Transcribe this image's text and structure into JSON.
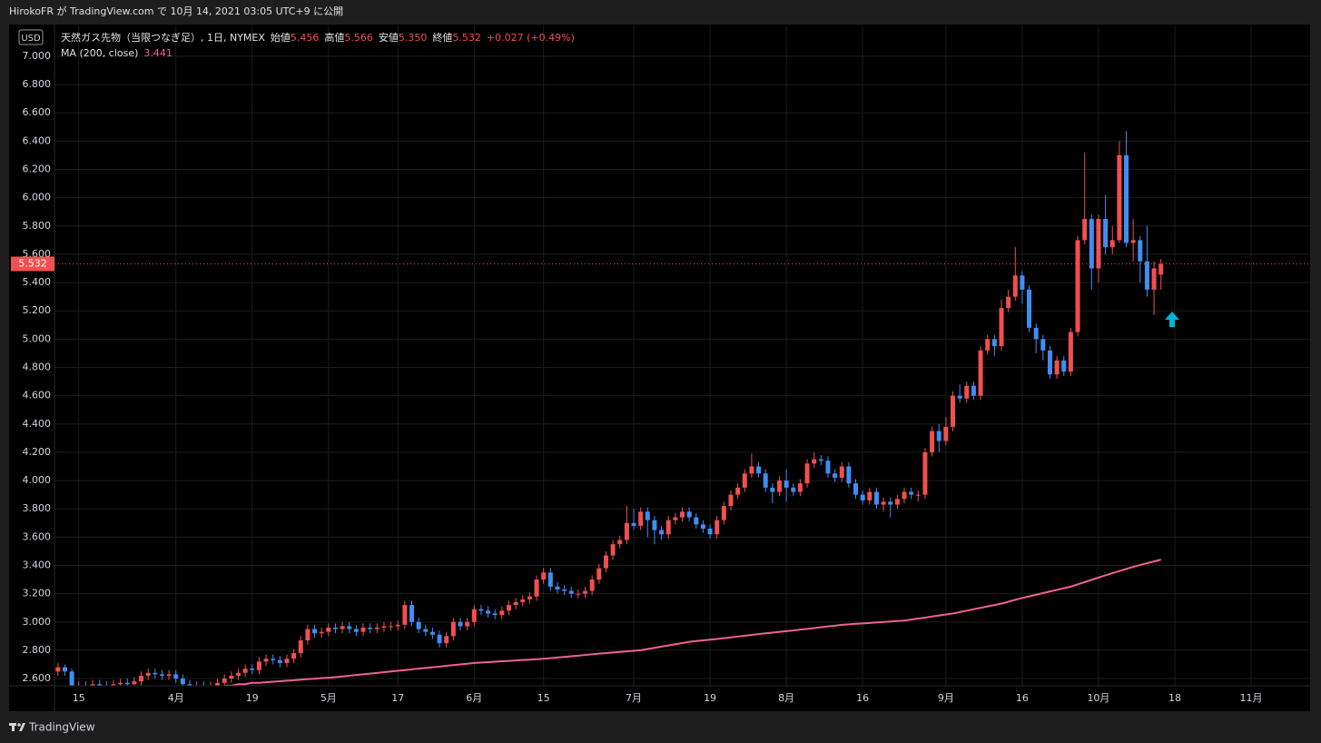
{
  "header": {
    "publish_line": "HirokoFR が TradingView.com で 10月 14, 2021 03:05 UTC+9 に公開"
  },
  "footer": {
    "brand": "TradingView"
  },
  "chart_data": {
    "type": "candlestick",
    "currency": "USD",
    "symbol": "天然ガス先物（当限つなぎ足）, 1日, NYMEX",
    "ohlc_legend": {
      "open_name": "始値",
      "open": "5.456",
      "high_name": "高値",
      "high": "5.566",
      "low_name": "安値",
      "low": "5.350",
      "close_name": "終値",
      "close": "5.532",
      "change": "+0.027 (+0.49%)"
    },
    "up_color": "#f0504f",
    "down_color": "#3f8ef5",
    "grid": true,
    "categories": [
      null,
      null,
      null,
      "15",
      null,
      null,
      null,
      null,
      null,
      null,
      null,
      null,
      null,
      null,
      null,
      null,
      null,
      "4月",
      null,
      null,
      null,
      null,
      null,
      null,
      null,
      null,
      null,
      null,
      "19",
      null,
      null,
      null,
      null,
      null,
      null,
      null,
      null,
      null,
      null,
      "5月",
      null,
      null,
      null,
      null,
      null,
      null,
      null,
      null,
      null,
      "17",
      null,
      null,
      null,
      null,
      null,
      null,
      null,
      null,
      null,
      null,
      "6月",
      null,
      null,
      null,
      null,
      null,
      null,
      null,
      null,
      null,
      "15",
      null,
      null,
      null,
      null,
      null,
      null,
      null,
      null,
      null,
      null,
      null,
      null,
      "7月",
      null,
      null,
      null,
      null,
      null,
      null,
      null,
      null,
      null,
      null,
      "19",
      null,
      null,
      null,
      null,
      null,
      null,
      null,
      null,
      null,
      null,
      "8月",
      null,
      null,
      null,
      null,
      null,
      null,
      null,
      null,
      null,
      null,
      "16",
      null,
      null,
      null,
      null,
      null,
      null,
      null,
      null,
      null,
      null,
      null,
      "9月",
      null,
      null,
      null,
      null,
      null,
      null,
      null,
      null,
      null,
      null,
      "16",
      null,
      null,
      null,
      null,
      null,
      null,
      null,
      null,
      null,
      null,
      "10月",
      null,
      null,
      null,
      null,
      null,
      null,
      null,
      null,
      null,
      null,
      "18",
      null,
      null,
      null,
      null,
      null,
      null,
      null,
      null,
      null,
      null,
      "11月",
      null,
      null,
      null,
      null,
      null,
      null,
      null,
      null
    ],
    "open": [
      2.65,
      2.68,
      2.65,
      2.55,
      2.55,
      2.54,
      2.56,
      2.55,
      2.54,
      2.56,
      2.57,
      2.56,
      2.58,
      2.62,
      2.64,
      2.63,
      2.62,
      2.63,
      2.6,
      2.56,
      2.54,
      2.55,
      2.54,
      2.55,
      2.57,
      2.6,
      2.62,
      2.64,
      2.67,
      2.66,
      2.72,
      2.74,
      2.73,
      2.71,
      2.74,
      2.78,
      2.87,
      2.95,
      2.92,
      2.93,
      2.96,
      2.95,
      2.97,
      2.95,
      2.93,
      2.96,
      2.95,
      2.96,
      2.97,
      2.97,
      2.98,
      3.12,
      3.0,
      2.95,
      2.93,
      2.91,
      2.85,
      2.9,
      3.0,
      2.97,
      3.0,
      3.09,
      3.08,
      3.06,
      3.05,
      3.08,
      3.12,
      3.14,
      3.16,
      3.18,
      3.3,
      3.35,
      3.25,
      3.23,
      3.22,
      3.2,
      3.2,
      3.22,
      3.3,
      3.38,
      3.47,
      3.55,
      3.58,
      3.7,
      3.68,
      3.78,
      3.72,
      3.65,
      3.62,
      3.72,
      3.74,
      3.78,
      3.74,
      3.69,
      3.66,
      3.62,
      3.72,
      3.82,
      3.9,
      3.95,
      4.05,
      4.1,
      4.05,
      3.95,
      3.92,
      4.0,
      3.95,
      3.92,
      3.98,
      4.12,
      4.15,
      4.14,
      4.05,
      4.02,
      4.1,
      3.98,
      3.9,
      3.86,
      3.92,
      3.83,
      3.85,
      3.83,
      3.87,
      3.92,
      3.9,
      3.9,
      4.2,
      4.35,
      4.28,
      4.38,
      4.6,
      4.58,
      4.67,
      4.6,
      4.92,
      5.0,
      4.95,
      5.22,
      5.3,
      5.45,
      5.35,
      5.08,
      5.0,
      4.92,
      4.75,
      4.85,
      4.77,
      5.05,
      5.7,
      5.85,
      5.5,
      5.85,
      5.65,
      5.7,
      6.3,
      5.68,
      5.7,
      5.55,
      5.35,
      5.456,
      null,
      null,
      null,
      null,
      null,
      null,
      null,
      null,
      null,
      null,
      null,
      null,
      null,
      null,
      null,
      null,
      null,
      null,
      null,
      null,
      null
    ],
    "high": [
      2.71,
      2.7,
      2.67,
      2.58,
      2.58,
      2.59,
      2.59,
      2.58,
      2.59,
      2.6,
      2.6,
      2.61,
      2.65,
      2.67,
      2.67,
      2.66,
      2.66,
      2.66,
      2.63,
      2.59,
      2.58,
      2.58,
      2.58,
      2.6,
      2.63,
      2.65,
      2.67,
      2.7,
      2.7,
      2.75,
      2.77,
      2.77,
      2.76,
      2.77,
      2.81,
      2.9,
      2.98,
      2.98,
      2.96,
      2.99,
      2.99,
      3.0,
      3.0,
      2.98,
      2.99,
      2.99,
      2.99,
      3.0,
      3.0,
      3.01,
      3.15,
      3.15,
      3.03,
      2.98,
      2.96,
      2.94,
      2.93,
      3.03,
      3.03,
      3.03,
      3.12,
      3.12,
      3.11,
      3.09,
      3.11,
      3.15,
      3.17,
      3.19,
      3.21,
      3.33,
      3.38,
      3.38,
      3.28,
      3.26,
      3.25,
      3.23,
      3.25,
      3.33,
      3.41,
      3.5,
      3.58,
      3.61,
      3.82,
      3.8,
      3.81,
      3.81,
      3.75,
      3.68,
      3.75,
      3.77,
      3.81,
      3.81,
      3.77,
      3.72,
      3.69,
      3.75,
      3.85,
      3.93,
      3.98,
      4.08,
      4.19,
      4.13,
      4.08,
      3.98,
      4.03,
      4.08,
      3.98,
      4.01,
      4.15,
      4.2,
      4.18,
      4.17,
      4.08,
      4.13,
      4.13,
      4.01,
      3.93,
      3.95,
      3.95,
      3.88,
      3.88,
      3.9,
      3.95,
      3.95,
      3.93,
      4.23,
      4.38,
      4.4,
      4.45,
      4.63,
      4.68,
      4.7,
      4.7,
      4.95,
      5.03,
      5.03,
      5.28,
      5.35,
      5.65,
      5.48,
      5.38,
      5.11,
      5.03,
      4.95,
      4.88,
      4.88,
      5.08,
      5.73,
      6.32,
      5.88,
      5.88,
      6.02,
      5.8,
      6.4,
      6.47,
      5.85,
      5.73,
      5.8,
      5.55,
      5.566,
      null,
      null,
      null,
      null,
      null,
      null,
      null,
      null,
      null,
      null,
      null,
      null,
      null,
      null,
      null,
      null,
      null,
      null,
      null,
      null,
      null
    ],
    "low": [
      2.62,
      2.62,
      2.52,
      2.52,
      2.51,
      2.51,
      2.52,
      2.51,
      2.51,
      2.53,
      2.53,
      2.53,
      2.55,
      2.59,
      2.6,
      2.59,
      2.59,
      2.57,
      2.53,
      2.51,
      2.51,
      2.51,
      2.51,
      2.52,
      2.54,
      2.57,
      2.59,
      2.61,
      2.63,
      2.63,
      2.69,
      2.7,
      2.68,
      2.68,
      2.71,
      2.75,
      2.84,
      2.89,
      2.89,
      2.9,
      2.92,
      2.92,
      2.92,
      2.9,
      2.9,
      2.92,
      2.92,
      2.93,
      2.94,
      2.94,
      2.95,
      2.97,
      2.92,
      2.9,
      2.88,
      2.82,
      2.82,
      2.87,
      2.94,
      2.94,
      2.97,
      3.05,
      3.03,
      3.02,
      3.02,
      3.05,
      3.09,
      3.11,
      3.13,
      3.15,
      3.27,
      3.22,
      3.2,
      3.19,
      3.17,
      3.17,
      3.17,
      3.19,
      3.27,
      3.35,
      3.44,
      3.52,
      3.55,
      3.65,
      3.65,
      3.6,
      3.55,
      3.58,
      3.59,
      3.69,
      3.71,
      3.71,
      3.66,
      3.63,
      3.59,
      3.59,
      3.69,
      3.79,
      3.87,
      3.92,
      4.02,
      4.02,
      3.92,
      3.84,
      3.89,
      3.85,
      3.89,
      3.89,
      3.95,
      4.09,
      4.11,
      4.02,
      3.99,
      3.99,
      3.95,
      3.87,
      3.83,
      3.83,
      3.8,
      3.78,
      3.74,
      3.8,
      3.84,
      3.87,
      3.85,
      3.87,
      4.17,
      4.2,
      4.25,
      4.35,
      4.55,
      4.55,
      4.57,
      4.57,
      4.89,
      4.88,
      4.92,
      5.19,
      5.27,
      5.25,
      5.05,
      4.9,
      4.85,
      4.72,
      4.72,
      4.74,
      4.74,
      5.02,
      5.67,
      5.35,
      5.4,
      5.6,
      5.6,
      5.68,
      5.65,
      5.55,
      5.4,
      5.3,
      5.17,
      5.35,
      null,
      null,
      null,
      null,
      null,
      null,
      null,
      null,
      null,
      null,
      null,
      null,
      null,
      null,
      null,
      null,
      null,
      null,
      null,
      null,
      null
    ],
    "close": [
      2.68,
      2.65,
      2.55,
      2.55,
      2.54,
      2.56,
      2.55,
      2.54,
      2.56,
      2.57,
      2.56,
      2.58,
      2.62,
      2.64,
      2.63,
      2.62,
      2.63,
      2.6,
      2.56,
      2.54,
      2.55,
      2.54,
      2.55,
      2.57,
      2.6,
      2.62,
      2.64,
      2.67,
      2.66,
      2.72,
      2.74,
      2.73,
      2.71,
      2.74,
      2.78,
      2.87,
      2.95,
      2.92,
      2.93,
      2.96,
      2.95,
      2.97,
      2.95,
      2.93,
      2.96,
      2.95,
      2.96,
      2.97,
      2.97,
      2.98,
      3.12,
      3.0,
      2.95,
      2.93,
      2.91,
      2.85,
      2.9,
      3.0,
      2.97,
      3.0,
      3.09,
      3.08,
      3.06,
      3.05,
      3.08,
      3.12,
      3.14,
      3.16,
      3.18,
      3.3,
      3.35,
      3.25,
      3.23,
      3.22,
      3.2,
      3.2,
      3.22,
      3.3,
      3.38,
      3.47,
      3.55,
      3.58,
      3.7,
      3.68,
      3.78,
      3.72,
      3.65,
      3.62,
      3.72,
      3.74,
      3.78,
      3.74,
      3.69,
      3.66,
      3.62,
      3.72,
      3.82,
      3.9,
      3.95,
      4.05,
      4.1,
      4.05,
      3.95,
      3.92,
      4.0,
      3.95,
      3.92,
      3.98,
      4.12,
      4.15,
      4.14,
      4.05,
      4.02,
      4.1,
      3.98,
      3.9,
      3.86,
      3.92,
      3.83,
      3.85,
      3.83,
      3.87,
      3.92,
      3.9,
      3.9,
      4.2,
      4.35,
      4.28,
      4.38,
      4.6,
      4.58,
      4.67,
      4.6,
      4.92,
      5.0,
      4.95,
      5.22,
      5.3,
      5.45,
      5.35,
      5.08,
      5.0,
      4.92,
      4.75,
      4.85,
      4.77,
      5.05,
      5.7,
      5.85,
      5.5,
      5.85,
      5.65,
      5.7,
      6.3,
      5.68,
      5.7,
      5.55,
      5.35,
      5.5,
      5.532,
      null,
      null,
      null,
      null,
      null,
      null,
      null,
      null,
      null,
      null,
      null,
      null,
      null,
      null,
      null,
      null,
      null,
      null,
      null,
      null,
      null
    ],
    "ma": {
      "name": "MA (200, close)",
      "color": "#f0628f",
      "values": [
        null,
        null,
        null,
        null,
        null,
        null,
        null,
        null,
        null,
        null,
        null,
        null,
        null,
        null,
        null,
        null,
        null,
        null,
        null,
        null,
        null,
        null,
        null,
        null,
        2.55,
        2.55,
        2.56,
        2.56,
        2.57,
        2.57,
        2.574,
        2.578,
        2.581,
        2.585,
        2.588,
        2.592,
        2.596,
        2.599,
        2.603,
        2.606,
        2.61,
        2.615,
        2.62,
        2.625,
        2.63,
        2.635,
        2.64,
        2.645,
        2.65,
        2.655,
        2.66,
        2.665,
        2.67,
        2.675,
        2.68,
        2.685,
        2.69,
        2.695,
        2.7,
        2.705,
        2.71,
        2.713,
        2.716,
        2.719,
        2.722,
        2.725,
        2.728,
        2.731,
        2.734,
        2.737,
        2.74,
        2.744,
        2.749,
        2.753,
        2.758,
        2.762,
        2.767,
        2.771,
        2.776,
        2.78,
        2.784,
        2.788,
        2.792,
        2.796,
        2.8,
        2.809,
        2.817,
        2.826,
        2.834,
        2.843,
        2.851,
        2.86,
        2.865,
        2.87,
        2.875,
        2.88,
        2.886,
        2.891,
        2.897,
        2.903,
        2.909,
        2.914,
        2.92,
        2.925,
        2.93,
        2.935,
        2.94,
        2.946,
        2.951,
        2.957,
        2.963,
        2.969,
        2.974,
        2.98,
        2.983,
        2.987,
        2.99,
        2.993,
        2.997,
        3.0,
        3.003,
        3.007,
        3.01,
        3.017,
        3.024,
        3.031,
        3.039,
        3.046,
        3.053,
        3.06,
        3.07,
        3.08,
        3.09,
        3.1,
        3.11,
        3.12,
        3.13,
        3.143,
        3.157,
        3.17,
        3.181,
        3.193,
        3.204,
        3.216,
        3.227,
        3.239,
        3.25,
        3.266,
        3.282,
        3.298,
        3.314,
        3.33,
        3.345,
        3.36,
        3.375,
        3.39,
        3.403,
        3.416,
        3.428,
        3.441,
        null,
        null,
        null,
        null,
        null,
        null,
        null,
        null,
        null,
        null,
        null,
        null,
        null,
        null,
        null,
        null,
        null,
        null,
        null,
        null,
        null
      ]
    },
    "ylim": [
      2.549,
      7.218
    ],
    "yticks": [
      {
        "value": 2.6,
        "label": "2.600"
      },
      {
        "value": 2.8,
        "label": "2.800"
      },
      {
        "value": 3.0,
        "label": "3.000"
      },
      {
        "value": 3.2,
        "label": "3.200"
      },
      {
        "value": 3.4,
        "label": "3.400"
      },
      {
        "value": 3.6,
        "label": "3.600"
      },
      {
        "value": 3.8,
        "label": "3.800"
      },
      {
        "value": 4.0,
        "label": "4.000"
      },
      {
        "value": 4.2,
        "label": "4.200"
      },
      {
        "value": 4.4,
        "label": "4.400"
      },
      {
        "value": 4.6,
        "label": "4.600"
      },
      {
        "value": 4.8,
        "label": "4.800"
      },
      {
        "value": 5.0,
        "label": "5.000"
      },
      {
        "value": 5.2,
        "label": "5.200"
      },
      {
        "value": 5.4,
        "label": "5.400"
      },
      {
        "value": 5.6,
        "label": "5.600"
      },
      {
        "value": 5.8,
        "label": "5.800"
      },
      {
        "value": 6.0,
        "label": "6.000"
      },
      {
        "value": 6.2,
        "label": "6.200"
      },
      {
        "value": 6.4,
        "label": "6.400"
      },
      {
        "value": 6.6,
        "label": "6.600"
      },
      {
        "value": 6.8,
        "label": "6.800"
      },
      {
        "value": 7.0,
        "label": "7.000"
      }
    ]
  }
}
